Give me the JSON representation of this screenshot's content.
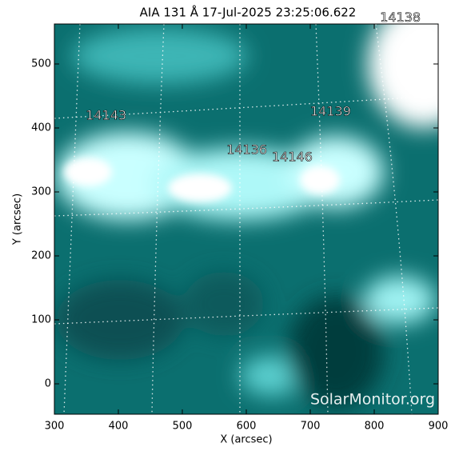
{
  "chart_data": {
    "type": "image",
    "title": "AIA 131 Å 17-Jul-2025 23:25:06.622",
    "xlabel": "X (arcsec)",
    "ylabel": "Y (arcsec)",
    "xlim": [
      300,
      900
    ],
    "ylim": [
      -47.5,
      562.5
    ],
    "xticks": [
      300,
      400,
      500,
      600,
      700,
      800,
      900
    ],
    "yticks": [
      0,
      100,
      200,
      300,
      400,
      500
    ],
    "annotations": [
      {
        "text": "14143",
        "x": 349,
        "y": 419
      },
      {
        "text": "14139",
        "x": 700,
        "y": 425
      },
      {
        "text": "14136",
        "x": 569,
        "y": 365
      },
      {
        "text": "14146",
        "x": 640,
        "y": 354
      },
      {
        "text": "14138",
        "x": 809,
        "y": 572
      }
    ],
    "watermark": "SolarMonitor.org"
  }
}
